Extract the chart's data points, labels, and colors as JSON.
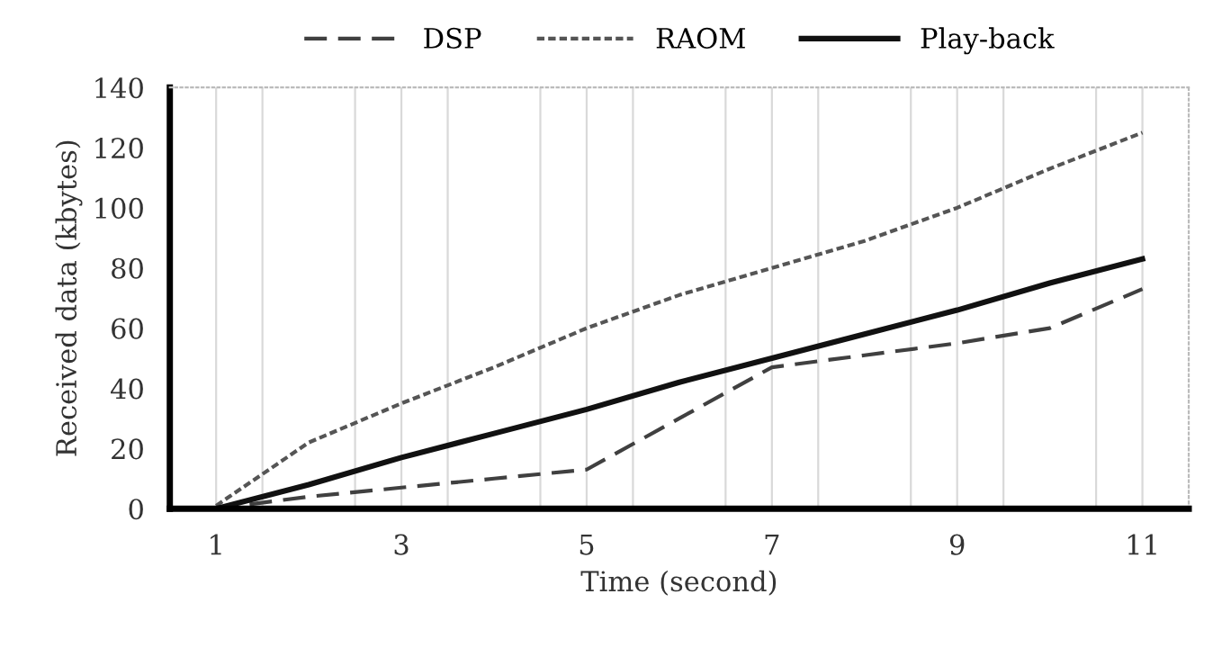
{
  "chart_data": {
    "type": "line",
    "xlabel": "Time (second)",
    "ylabel": "Received data (kbytes)",
    "x": [
      1,
      2,
      3,
      4,
      5,
      6,
      7,
      8,
      9,
      10,
      11
    ],
    "xlim": [
      0.5,
      11.5
    ],
    "xticks": [
      1,
      {
        "value": 1.5,
        "label": null
      },
      {
        "value": 2.5,
        "label": null
      },
      3,
      {
        "value": 3.5,
        "label": null
      },
      {
        "value": 4.5,
        "label": null
      },
      5,
      {
        "value": 5.5,
        "label": null
      },
      {
        "value": 6.5,
        "label": null
      },
      7,
      {
        "value": 7.5,
        "label": null
      },
      {
        "value": 8.5,
        "label": null
      },
      9,
      {
        "value": 9.5,
        "label": null
      },
      {
        "value": 10.5,
        "label": null
      },
      11
    ],
    "ylim": [
      0,
      140
    ],
    "yticks": [
      0,
      20,
      40,
      60,
      80,
      100,
      120,
      140
    ],
    "grid": "x",
    "legend": "top",
    "marker": "none",
    "series": [
      {
        "name": "DSP",
        "color": "#404040",
        "line_style": "dashed",
        "values": [
          0,
          4,
          7,
          10,
          13,
          30,
          47,
          51,
          55,
          60,
          73
        ]
      },
      {
        "name": "RAOM",
        "color": "#555555",
        "line_style": "dotted",
        "values": [
          1,
          22,
          35,
          47,
          60,
          71,
          80,
          89,
          100,
          113,
          125
        ]
      },
      {
        "name": "Play-back",
        "color": "#111111",
        "line_style": "solid",
        "values": [
          0,
          8,
          17,
          25,
          33,
          42,
          50,
          58,
          66,
          75,
          83
        ]
      }
    ]
  }
}
